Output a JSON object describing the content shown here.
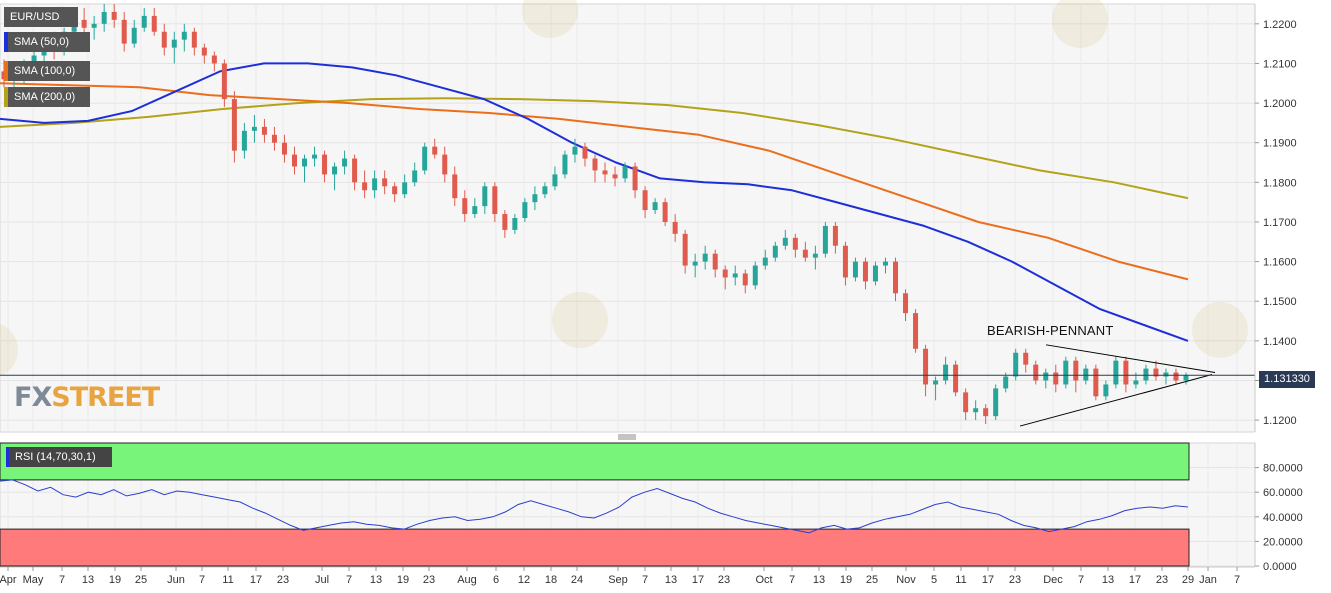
{
  "symbol": "EUR/USD",
  "indicators": {
    "sma50": "SMA (50,0)",
    "sma100": "SMA (100,0)",
    "sma200": "SMA (200,0)",
    "rsi": "RSI (14,70,30,1)"
  },
  "current_price": "1.131330",
  "annotation": "BEARISH-PENNANT",
  "logo": {
    "fx": "FX",
    "street": "STREET"
  },
  "colors": {
    "up": "#26a69a",
    "down": "#e05a4d",
    "sma50": "#1c2fd8",
    "sma100": "#ec6e1c",
    "sma200": "#b3a21a",
    "rsi_line": "#2b3fd0",
    "overbought_zone": "#79f47a",
    "oversold_zone": "#ff7a7a"
  },
  "chart_data": [
    {
      "type": "candlestick",
      "title": "EUR/USD",
      "ylim": [
        1.117,
        1.225
      ],
      "yticks": [
        "1.1200",
        "1.1300",
        "1.1400",
        "1.1500",
        "1.1600",
        "1.1700",
        "1.1800",
        "1.1900",
        "1.2000",
        "1.2100",
        "1.2200"
      ],
      "xticks": [
        "Apr",
        "May",
        "7",
        "13",
        "19",
        "25",
        "Jun",
        "7",
        "11",
        "17",
        "23",
        "Jul",
        "7",
        "13",
        "19",
        "23",
        "Aug",
        "6",
        "12",
        "18",
        "24",
        "Sep",
        "7",
        "13",
        "17",
        "23",
        "Oct",
        "7",
        "13",
        "19",
        "25",
        "Nov",
        "5",
        "11",
        "17",
        "23",
        "Dec",
        "7",
        "13",
        "17",
        "23",
        "29",
        "Jan",
        "7"
      ],
      "ohlc": [
        [
          1.208,
          1.211,
          1.204,
          1.206
        ],
        [
          1.206,
          1.209,
          1.203,
          1.207
        ],
        [
          1.207,
          1.211,
          1.205,
          1.2095
        ],
        [
          1.2095,
          1.213,
          1.208,
          1.212
        ],
        [
          1.212,
          1.216,
          1.21,
          1.215
        ],
        [
          1.215,
          1.218,
          1.211,
          1.213
        ],
        [
          1.213,
          1.219,
          1.212,
          1.218
        ],
        [
          1.218,
          1.223,
          1.216,
          1.221
        ],
        [
          1.221,
          1.224,
          1.217,
          1.219
        ],
        [
          1.219,
          1.222,
          1.216,
          1.22
        ],
        [
          1.22,
          1.225,
          1.218,
          1.223
        ],
        [
          1.223,
          1.225,
          1.219,
          1.221
        ],
        [
          1.221,
          1.223,
          1.213,
          1.215
        ],
        [
          1.215,
          1.221,
          1.214,
          1.219
        ],
        [
          1.219,
          1.224,
          1.218,
          1.222
        ],
        [
          1.222,
          1.224,
          1.217,
          1.218
        ],
        [
          1.218,
          1.22,
          1.212,
          1.214
        ],
        [
          1.214,
          1.218,
          1.21,
          1.216
        ],
        [
          1.216,
          1.22,
          1.213,
          1.218
        ],
        [
          1.218,
          1.219,
          1.212,
          1.214
        ],
        [
          1.214,
          1.215,
          1.21,
          1.212
        ],
        [
          1.212,
          1.213,
          1.208,
          1.21
        ],
        [
          1.21,
          1.211,
          1.199,
          1.201
        ],
        [
          1.201,
          1.203,
          1.185,
          1.188
        ],
        [
          1.188,
          1.195,
          1.186,
          1.193
        ],
        [
          1.193,
          1.197,
          1.19,
          1.194
        ],
        [
          1.194,
          1.196,
          1.19,
          1.192
        ],
        [
          1.192,
          1.194,
          1.188,
          1.19
        ],
        [
          1.19,
          1.192,
          1.185,
          1.187
        ],
        [
          1.187,
          1.189,
          1.182,
          1.184
        ],
        [
          1.184,
          1.187,
          1.18,
          1.186
        ],
        [
          1.186,
          1.189,
          1.184,
          1.187
        ],
        [
          1.187,
          1.188,
          1.18,
          1.182
        ],
        [
          1.182,
          1.185,
          1.178,
          1.184
        ],
        [
          1.184,
          1.188,
          1.182,
          1.186
        ],
        [
          1.186,
          1.187,
          1.178,
          1.18
        ],
        [
          1.18,
          1.183,
          1.176,
          1.178
        ],
        [
          1.178,
          1.183,
          1.176,
          1.181
        ],
        [
          1.181,
          1.183,
          1.177,
          1.179
        ],
        [
          1.179,
          1.18,
          1.175,
          1.177
        ],
        [
          1.177,
          1.182,
          1.176,
          1.18
        ],
        [
          1.18,
          1.185,
          1.179,
          1.183
        ],
        [
          1.183,
          1.19,
          1.182,
          1.189
        ],
        [
          1.189,
          1.191,
          1.186,
          1.187
        ],
        [
          1.187,
          1.189,
          1.18,
          1.182
        ],
        [
          1.182,
          1.184,
          1.174,
          1.176
        ],
        [
          1.176,
          1.178,
          1.17,
          1.172
        ],
        [
          1.172,
          1.176,
          1.171,
          1.174
        ],
        [
          1.174,
          1.18,
          1.172,
          1.179
        ],
        [
          1.179,
          1.18,
          1.17,
          1.172
        ],
        [
          1.172,
          1.173,
          1.166,
          1.168
        ],
        [
          1.168,
          1.172,
          1.167,
          1.171
        ],
        [
          1.171,
          1.176,
          1.17,
          1.175
        ],
        [
          1.175,
          1.179,
          1.173,
          1.177
        ],
        [
          1.177,
          1.18,
          1.176,
          1.179
        ],
        [
          1.179,
          1.184,
          1.178,
          1.182
        ],
        [
          1.182,
          1.188,
          1.181,
          1.187
        ],
        [
          1.187,
          1.191,
          1.185,
          1.189
        ],
        [
          1.189,
          1.19,
          1.184,
          1.186
        ],
        [
          1.186,
          1.187,
          1.18,
          1.183
        ],
        [
          1.183,
          1.185,
          1.18,
          1.182
        ],
        [
          1.182,
          1.184,
          1.179,
          1.181
        ],
        [
          1.181,
          1.185,
          1.18,
          1.184
        ],
        [
          1.184,
          1.185,
          1.176,
          1.178
        ],
        [
          1.178,
          1.179,
          1.171,
          1.173
        ],
        [
          1.173,
          1.176,
          1.172,
          1.175
        ],
        [
          1.175,
          1.176,
          1.169,
          1.17
        ],
        [
          1.17,
          1.172,
          1.165,
          1.167
        ],
        [
          1.167,
          1.168,
          1.157,
          1.159
        ],
        [
          1.159,
          1.162,
          1.156,
          1.16
        ],
        [
          1.16,
          1.164,
          1.158,
          1.162
        ],
        [
          1.162,
          1.163,
          1.156,
          1.158
        ],
        [
          1.158,
          1.159,
          1.153,
          1.156
        ],
        [
          1.156,
          1.159,
          1.154,
          1.157
        ],
        [
          1.157,
          1.158,
          1.152,
          1.154
        ],
        [
          1.154,
          1.16,
          1.153,
          1.159
        ],
        [
          1.159,
          1.163,
          1.158,
          1.161
        ],
        [
          1.161,
          1.165,
          1.16,
          1.164
        ],
        [
          1.164,
          1.168,
          1.163,
          1.166
        ],
        [
          1.166,
          1.167,
          1.161,
          1.163
        ],
        [
          1.163,
          1.165,
          1.16,
          1.161
        ],
        [
          1.161,
          1.164,
          1.158,
          1.162
        ],
        [
          1.162,
          1.17,
          1.161,
          1.169
        ],
        [
          1.169,
          1.17,
          1.162,
          1.164
        ],
        [
          1.164,
          1.165,
          1.154,
          1.156
        ],
        [
          1.156,
          1.161,
          1.155,
          1.16
        ],
        [
          1.16,
          1.161,
          1.153,
          1.155
        ],
        [
          1.155,
          1.16,
          1.154,
          1.159
        ],
        [
          1.159,
          1.161,
          1.157,
          1.16
        ],
        [
          1.16,
          1.161,
          1.15,
          1.152
        ],
        [
          1.152,
          1.153,
          1.145,
          1.147
        ],
        [
          1.147,
          1.148,
          1.137,
          1.138
        ],
        [
          1.138,
          1.139,
          1.126,
          1.129
        ],
        [
          1.129,
          1.131,
          1.125,
          1.13
        ],
        [
          1.13,
          1.136,
          1.129,
          1.134
        ],
        [
          1.134,
          1.135,
          1.126,
          1.127
        ],
        [
          1.127,
          1.128,
          1.12,
          1.122
        ],
        [
          1.122,
          1.125,
          1.12,
          1.123
        ],
        [
          1.123,
          1.124,
          1.119,
          1.121
        ],
        [
          1.121,
          1.129,
          1.12,
          1.128
        ],
        [
          1.128,
          1.132,
          1.127,
          1.131
        ],
        [
          1.131,
          1.138,
          1.13,
          1.137
        ],
        [
          1.137,
          1.138,
          1.132,
          1.134
        ],
        [
          1.134,
          1.135,
          1.129,
          1.13
        ],
        [
          1.13,
          1.133,
          1.128,
          1.132
        ],
        [
          1.132,
          1.134,
          1.127,
          1.129
        ],
        [
          1.129,
          1.136,
          1.128,
          1.135
        ],
        [
          1.135,
          1.136,
          1.127,
          1.13
        ],
        [
          1.13,
          1.134,
          1.129,
          1.133
        ],
        [
          1.133,
          1.134,
          1.125,
          1.126
        ],
        [
          1.126,
          1.13,
          1.125,
          1.129
        ],
        [
          1.129,
          1.136,
          1.128,
          1.135
        ],
        [
          1.135,
          1.136,
          1.127,
          1.129
        ],
        [
          1.129,
          1.132,
          1.128,
          1.13
        ],
        [
          1.13,
          1.134,
          1.129,
          1.133
        ],
        [
          1.133,
          1.135,
          1.13,
          1.131
        ],
        [
          1.131,
          1.133,
          1.129,
          1.132
        ],
        [
          1.132,
          1.133,
          1.129,
          1.13
        ],
        [
          1.13,
          1.132,
          1.129,
          1.1313
        ]
      ],
      "sma50": [
        1.196,
        1.195,
        1.1955,
        1.198,
        1.203,
        1.208,
        1.21,
        1.21,
        1.209,
        1.207,
        1.204,
        1.201,
        1.196,
        1.19,
        1.185,
        1.181,
        1.18,
        1.1795,
        1.178,
        1.175,
        1.172,
        1.169,
        1.165,
        1.16,
        1.154,
        1.148,
        1.144,
        1.14
      ],
      "sma100": [
        1.205,
        1.2045,
        1.204,
        1.202,
        1.201,
        1.2,
        1.1985,
        1.1975,
        1.196,
        1.194,
        1.192,
        1.188,
        1.182,
        1.176,
        1.17,
        1.166,
        1.16,
        1.1555
      ],
      "sma200": [
        1.194,
        1.195,
        1.1965,
        1.1985,
        1.2,
        1.201,
        1.2012,
        1.201,
        1.2005,
        1.1995,
        1.1975,
        1.1945,
        1.191,
        1.187,
        1.183,
        1.18,
        1.176
      ],
      "pennant_upper": [
        [
          1.139,
          1.132
        ]
      ],
      "pennant_lower": [
        [
          1.1185,
          1.1315
        ]
      ]
    },
    {
      "type": "line",
      "title": "RSI (14,70,30,1)",
      "ylim": [
        0,
        100
      ],
      "yticks": [
        "0.0000",
        "20.0000",
        "40.0000",
        "60.0000",
        "80.0000"
      ],
      "overbought": 70,
      "oversold": 30,
      "values": [
        69,
        70,
        66,
        61,
        64,
        58,
        56,
        60,
        58,
        62,
        57,
        59,
        62,
        58,
        61,
        60,
        58,
        56,
        54,
        52,
        47,
        43,
        38,
        33,
        29,
        31,
        33,
        35,
        36,
        34,
        33,
        31,
        30,
        34,
        37,
        39,
        40,
        37,
        38,
        40,
        44,
        50,
        53,
        50,
        47,
        44,
        40,
        39,
        43,
        48,
        56,
        60,
        63,
        59,
        55,
        52,
        47,
        43,
        40,
        37,
        35,
        33,
        31,
        29,
        27,
        31,
        33,
        30,
        31,
        35,
        38,
        40,
        42,
        46,
        50,
        52,
        48,
        46,
        44,
        42,
        37,
        33,
        31,
        28,
        30,
        32,
        36,
        38,
        41,
        45,
        47,
        48,
        47,
        49,
        48
      ]
    }
  ]
}
